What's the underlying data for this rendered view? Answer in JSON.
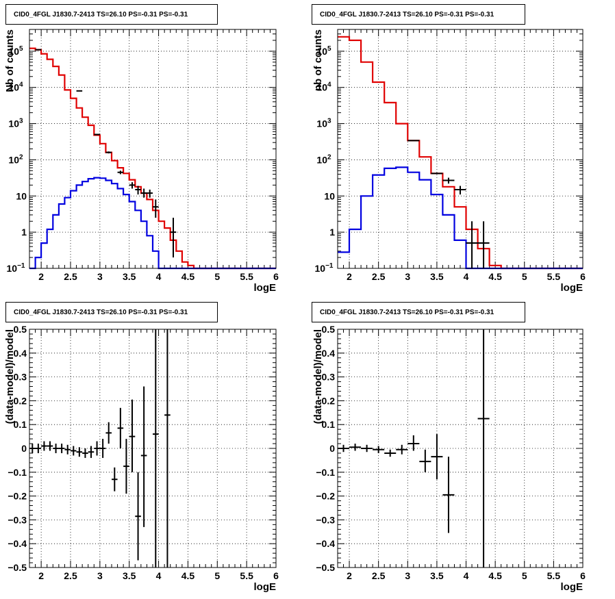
{
  "chart_data": [
    {
      "type": "step-line",
      "title": "CID0_4FGL J1830.7-2413 TS=26.10 PS=-0.31 PS=-0.31",
      "xlabel": "logE",
      "ylabel": "Nb of counts",
      "xlim": [
        1.8,
        6
      ],
      "ylim": [
        0.1,
        400000
      ],
      "ylog": true,
      "grid": true,
      "x_ticks": [
        "2",
        "2.5",
        "3",
        "3.5",
        "4",
        "4.5",
        "5",
        "5.5",
        "6"
      ],
      "y_ticks": [
        "10^{-1}",
        "1",
        "10",
        "10^{2}",
        "10^{3}",
        "10^{4}",
        "10^{5}"
      ],
      "bin_edges": [
        1.8,
        1.9,
        2.0,
        2.1,
        2.2,
        2.3,
        2.4,
        2.5,
        2.6,
        2.7,
        2.8,
        2.9,
        3.0,
        3.1,
        3.2,
        3.3,
        3.4,
        3.5,
        3.6,
        3.7,
        3.8,
        3.9,
        4.0,
        4.1,
        4.2,
        4.3,
        4.4,
        4.5,
        4.6,
        4.7,
        4.8,
        4.9,
        5.0,
        5.1,
        5.2,
        5.3,
        5.4,
        5.5,
        5.6,
        5.7,
        5.8,
        5.9,
        6.0
      ],
      "series": [
        {
          "color": "#e00000",
          "values": [
            120000,
            110000,
            85000,
            60000,
            38000,
            22000,
            8500,
            5000,
            2700,
            1500,
            900,
            480,
            280,
            160,
            95,
            60,
            42,
            28,
            18,
            12,
            8,
            4,
            2,
            1.3,
            0.6,
            0.3,
            0.15,
            0.12,
            0.1,
            0.1,
            0.1,
            0.1,
            0.1,
            0.1,
            0.1,
            0.1,
            0.1,
            0.1,
            0.1,
            0.1,
            0.1,
            0.1
          ]
        },
        {
          "color": "#0000e0",
          "values": [
            0.1,
            0.2,
            0.5,
            1.2,
            3,
            6,
            9,
            14,
            20,
            25,
            30,
            32,
            31,
            27,
            22,
            16,
            11,
            7,
            4,
            2,
            0.8,
            0.3,
            0.1,
            0.1,
            0.1,
            0.1,
            0.1,
            0.1,
            0.1,
            0.1,
            0.1,
            0.1,
            0.1,
            0.1,
            0.1,
            0.1,
            0.1,
            0.1,
            0.1,
            0.1,
            0.1,
            0.1
          ]
        }
      ],
      "data_points": [
        {
          "x": 1.95,
          "y": 110000,
          "ylo": 108000,
          "yhi": 112000,
          "xerr": 0.05
        },
        {
          "x": 2.65,
          "y": 8000,
          "ylo": 7900,
          "yhi": 8100,
          "xerr": 0.05
        },
        {
          "x": 2.95,
          "y": 500,
          "ylo": 480,
          "yhi": 520,
          "xerr": 0.05
        },
        {
          "x": 3.15,
          "y": 160,
          "ylo": 150,
          "yhi": 170,
          "xerr": 0.05
        },
        {
          "x": 3.35,
          "y": 45,
          "ylo": 40,
          "yhi": 50,
          "xerr": 0.05
        },
        {
          "x": 3.55,
          "y": 20,
          "ylo": 16,
          "yhi": 24,
          "xerr": 0.05
        },
        {
          "x": 3.65,
          "y": 15,
          "ylo": 11,
          "yhi": 19,
          "xerr": 0.05
        },
        {
          "x": 3.75,
          "y": 12,
          "ylo": 9,
          "yhi": 16,
          "xerr": 0.05
        },
        {
          "x": 3.85,
          "y": 12,
          "ylo": 9,
          "yhi": 15,
          "xerr": 0.05
        },
        {
          "x": 3.95,
          "y": 5,
          "ylo": 2.5,
          "yhi": 8,
          "xerr": 0.05
        },
        {
          "x": 4.25,
          "y": 1,
          "ylo": 0.2,
          "yhi": 2.5,
          "xerr": 0.05
        }
      ]
    },
    {
      "type": "step-line",
      "title": "CID0_4FGL J1830.7-2413 TS=26.10 PS=-0.31 PS=-0.31",
      "xlabel": "logE",
      "ylabel": "nb of counts",
      "xlim": [
        1.8,
        6
      ],
      "ylim": [
        0.1,
        400000
      ],
      "ylog": true,
      "grid": true,
      "x_ticks": [
        "2",
        "2.5",
        "3",
        "3.5",
        "4",
        "4.5",
        "5",
        "5.5",
        "6"
      ],
      "y_ticks": [
        "10^{-1}",
        "1",
        "10",
        "10^{2}",
        "10^{3}",
        "10^{4}",
        "10^{5}"
      ],
      "bin_edges": [
        1.8,
        2.0,
        2.2,
        2.4,
        2.6,
        2.8,
        3.0,
        3.2,
        3.4,
        3.6,
        3.8,
        4.0,
        4.2,
        4.4,
        4.6,
        4.8,
        5.0,
        5.2,
        5.4,
        5.6,
        5.8,
        6.0
      ],
      "series": [
        {
          "color": "#e00000",
          "values": [
            250000,
            200000,
            50000,
            14000,
            3800,
            1000,
            340,
            120,
            42,
            18,
            5,
            1.2,
            0.35,
            0.12,
            0.1,
            0.1,
            0.1,
            0.1,
            0.1,
            0.1,
            0.1
          ]
        },
        {
          "color": "#0000e0",
          "values": [
            0.28,
            1.2,
            10,
            38,
            58,
            62,
            45,
            28,
            11,
            3,
            0.6,
            0.1,
            0.1,
            0.1,
            0.1,
            0.1,
            0.1,
            0.1,
            0.1,
            0.1,
            0.1
          ]
        }
      ],
      "data_points": [
        {
          "x": 3.1,
          "y": 340,
          "ylo": 330,
          "yhi": 350,
          "xerr": 0.1
        },
        {
          "x": 3.5,
          "y": 42,
          "ylo": 40,
          "yhi": 44,
          "xerr": 0.1
        },
        {
          "x": 3.7,
          "y": 27,
          "ylo": 22,
          "yhi": 32,
          "xerr": 0.1
        },
        {
          "x": 3.9,
          "y": 15,
          "ylo": 11,
          "yhi": 19,
          "xerr": 0.1
        },
        {
          "x": 4.1,
          "y": 0.5,
          "ylo": 0.1,
          "yhi": 2,
          "xerr": 0.1
        },
        {
          "x": 4.3,
          "y": 0.5,
          "ylo": 0.1,
          "yhi": 2,
          "xerr": 0.1
        }
      ]
    },
    {
      "type": "scatter",
      "title": "CID0_4FGL J1830.7-2413 TS=26.10 PS=-0.31 PS=-0.31",
      "xlabel": "logE",
      "ylabel": "(data-model)/model",
      "xlim": [
        1.8,
        6
      ],
      "ylim": [
        -0.5,
        0.5
      ],
      "ylog": false,
      "grid": true,
      "x_ticks": [
        "2",
        "2.5",
        "3",
        "3.5",
        "4",
        "4.5",
        "5",
        "5.5",
        "6"
      ],
      "y_ticks": [
        "-0.5",
        "-0.4",
        "-0.3",
        "-0.2",
        "-0.1",
        "0",
        "0.1",
        "0.2",
        "0.3",
        "0.4",
        "0.5"
      ],
      "data_points": [
        {
          "x": 1.85,
          "y": 0.0,
          "ylo": -0.02,
          "yhi": 0.02,
          "xerr": 0.05
        },
        {
          "x": 1.95,
          "y": 0.0,
          "ylo": -0.02,
          "yhi": 0.02,
          "xerr": 0.05
        },
        {
          "x": 2.05,
          "y": 0.01,
          "ylo": -0.01,
          "yhi": 0.03,
          "xerr": 0.05
        },
        {
          "x": 2.15,
          "y": 0.01,
          "ylo": -0.01,
          "yhi": 0.03,
          "xerr": 0.05
        },
        {
          "x": 2.25,
          "y": 0.0,
          "ylo": -0.02,
          "yhi": 0.02,
          "xerr": 0.05
        },
        {
          "x": 2.35,
          "y": 0.0,
          "ylo": -0.02,
          "yhi": 0.02,
          "xerr": 0.05
        },
        {
          "x": 2.45,
          "y": -0.005,
          "ylo": -0.025,
          "yhi": 0.015,
          "xerr": 0.05
        },
        {
          "x": 2.55,
          "y": -0.01,
          "ylo": -0.03,
          "yhi": 0.01,
          "xerr": 0.05
        },
        {
          "x": 2.65,
          "y": -0.015,
          "ylo": -0.035,
          "yhi": 0.005,
          "xerr": 0.05
        },
        {
          "x": 2.75,
          "y": -0.02,
          "ylo": -0.04,
          "yhi": 0.0,
          "xerr": 0.05
        },
        {
          "x": 2.85,
          "y": -0.015,
          "ylo": -0.04,
          "yhi": 0.01,
          "xerr": 0.05
        },
        {
          "x": 2.95,
          "y": 0.0,
          "ylo": -0.03,
          "yhi": 0.03,
          "xerr": 0.05
        },
        {
          "x": 3.05,
          "y": 0.0,
          "ylo": -0.04,
          "yhi": 0.04,
          "xerr": 0.05
        },
        {
          "x": 3.15,
          "y": 0.065,
          "ylo": 0.02,
          "yhi": 0.11,
          "xerr": 0.05
        },
        {
          "x": 3.25,
          "y": -0.13,
          "ylo": -0.18,
          "yhi": -0.08,
          "xerr": 0.05
        },
        {
          "x": 3.35,
          "y": 0.085,
          "ylo": 0.0,
          "yhi": 0.17,
          "xerr": 0.05
        },
        {
          "x": 3.45,
          "y": -0.075,
          "ylo": -0.19,
          "yhi": 0.04,
          "xerr": 0.05
        },
        {
          "x": 3.55,
          "y": 0.05,
          "ylo": -0.1,
          "yhi": 0.205,
          "xerr": 0.05
        },
        {
          "x": 3.65,
          "y": -0.285,
          "ylo": -0.47,
          "yhi": -0.1,
          "xerr": 0.05
        },
        {
          "x": 3.75,
          "y": -0.03,
          "ylo": -0.33,
          "yhi": 0.26,
          "xerr": 0.05
        },
        {
          "x": 3.95,
          "y": 0.06,
          "ylo": -0.5,
          "yhi": 0.5,
          "xerr": 0.05
        },
        {
          "x": 4.15,
          "y": 0.14,
          "ylo": -0.5,
          "yhi": 0.5,
          "xerr": 0.05
        }
      ]
    },
    {
      "type": "scatter",
      "title": "CID0_4FGL J1830.7-2413 TS=26.10 PS=-0.31 PS=-0.31",
      "xlabel": "logE",
      "ylabel": "(data-model)/model",
      "xlim": [
        1.8,
        6
      ],
      "ylim": [
        -0.5,
        0.5
      ],
      "ylog": false,
      "grid": true,
      "x_ticks": [
        "2",
        "2.5",
        "3",
        "3.5",
        "4",
        "4.5",
        "5",
        "5.5",
        "6"
      ],
      "y_ticks": [
        "-0.5",
        "-0.4",
        "-0.3",
        "-0.2",
        "-0.1",
        "0",
        "0.1",
        "0.2",
        "0.3",
        "0.4",
        "0.5"
      ],
      "data_points": [
        {
          "x": 1.9,
          "y": 0.0,
          "ylo": -0.015,
          "yhi": 0.015,
          "xerr": 0.1
        },
        {
          "x": 2.1,
          "y": 0.005,
          "ylo": -0.01,
          "yhi": 0.02,
          "xerr": 0.1
        },
        {
          "x": 2.3,
          "y": 0.0,
          "ylo": -0.015,
          "yhi": 0.015,
          "xerr": 0.1
        },
        {
          "x": 2.5,
          "y": -0.005,
          "ylo": -0.02,
          "yhi": 0.01,
          "xerr": 0.1
        },
        {
          "x": 2.7,
          "y": -0.02,
          "ylo": -0.035,
          "yhi": -0.005,
          "xerr": 0.1
        },
        {
          "x": 2.9,
          "y": -0.005,
          "ylo": -0.025,
          "yhi": 0.015,
          "xerr": 0.1
        },
        {
          "x": 3.1,
          "y": 0.02,
          "ylo": -0.01,
          "yhi": 0.055,
          "xerr": 0.1
        },
        {
          "x": 3.3,
          "y": -0.055,
          "ylo": -0.1,
          "yhi": -0.005,
          "xerr": 0.1
        },
        {
          "x": 3.5,
          "y": -0.035,
          "ylo": -0.13,
          "yhi": 0.06,
          "xerr": 0.1
        },
        {
          "x": 3.7,
          "y": -0.195,
          "ylo": -0.355,
          "yhi": -0.035,
          "xerr": 0.1
        },
        {
          "x": 4.3,
          "y": 0.125,
          "ylo": -0.5,
          "yhi": 0.5,
          "xerr": 0.1
        }
      ]
    }
  ]
}
